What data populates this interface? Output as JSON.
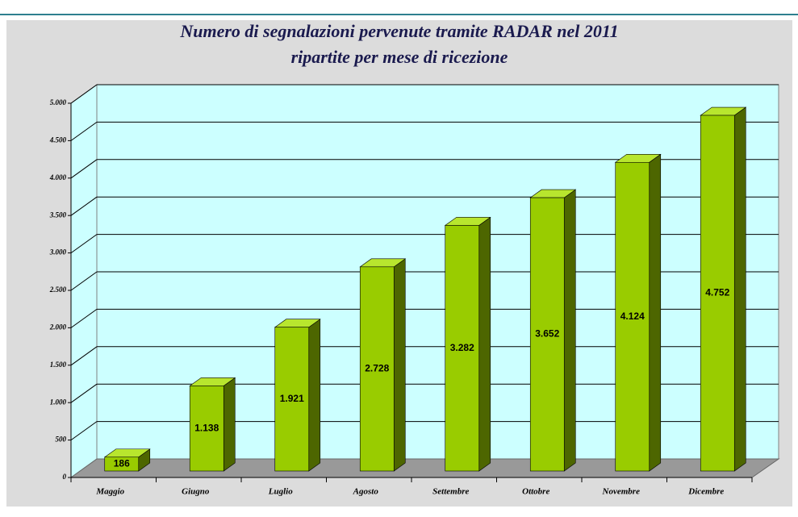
{
  "chart_data": {
    "type": "bar3d",
    "title": "Numero di segnalazioni pervenute tramite RADAR nel 2011",
    "subtitle": "ripartite per mese di ricezione",
    "categories": [
      "Maggio",
      "Giugno",
      "Luglio",
      "Agosto",
      "Settembre",
      "Ottobre",
      "Novembre",
      "Dicembre"
    ],
    "values": [
      186,
      1138,
      1921,
      2728,
      3282,
      3652,
      4124,
      4752
    ],
    "value_labels": [
      "186",
      "1.138",
      "1.921",
      "2.728",
      "3.282",
      "3.652",
      "4.124",
      "4.752"
    ],
    "color": "#99cc00",
    "ylim": [
      0,
      5000
    ],
    "yticks": [
      0,
      500,
      {
        "value": 1000,
        "label": "1.000"
      },
      {
        "value": 1500,
        "label": "1.500"
      },
      {
        "value": 2000,
        "label": "2.000"
      },
      {
        "value": 2500,
        "label": "2.500"
      },
      {
        "value": 3000,
        "label": "3.000"
      },
      {
        "value": 3500,
        "label": "3.500"
      },
      {
        "value": 4000,
        "label": "4.000"
      },
      {
        "value": 4500,
        "label": "4.500"
      },
      {
        "value": 5000,
        "label": "5.000"
      }
    ],
    "grid": true
  }
}
